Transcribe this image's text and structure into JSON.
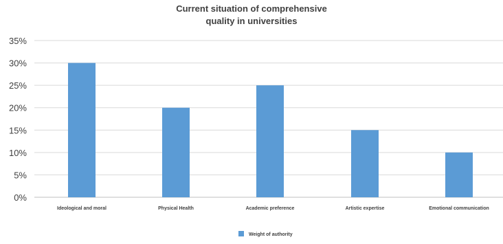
{
  "chart_data": {
    "type": "bar",
    "title": [
      "Current situation of comprehensive",
      "quality in universities"
    ],
    "categories": [
      "Ideological and moral",
      "Physical Health",
      "Academic preference",
      "Artistic expertise",
      "Emotional communication"
    ],
    "series": [
      {
        "name": "Weight of authority",
        "values": [
          30,
          20,
          25,
          15,
          10
        ],
        "color": "#5b9bd5"
      }
    ],
    "ylim": [
      0,
      35
    ],
    "yticks": [
      0,
      5,
      10,
      15,
      20,
      25,
      30,
      35
    ],
    "ytick_labels": [
      "0%",
      "5%",
      "10%",
      "15%",
      "20%",
      "25%",
      "30%",
      "35%"
    ],
    "grid": true,
    "legend": "bottom-center",
    "xlabel": "",
    "ylabel": ""
  }
}
